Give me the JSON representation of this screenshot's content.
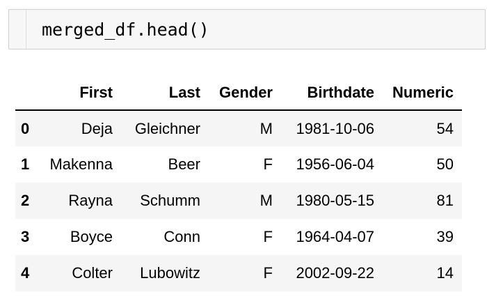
{
  "cell": {
    "code": "merged_df.head()"
  },
  "table": {
    "columns": [
      "",
      "First",
      "Last",
      "Gender",
      "Birthdate",
      "Numeric"
    ],
    "rows": [
      {
        "index": "0",
        "first": "Deja",
        "last": "Gleichner",
        "gender": "M",
        "birthdate": "1981-10-06",
        "numeric": "54"
      },
      {
        "index": "1",
        "first": "Makenna",
        "last": "Beer",
        "gender": "F",
        "birthdate": "1956-06-04",
        "numeric": "50"
      },
      {
        "index": "2",
        "first": "Rayna",
        "last": "Schumm",
        "gender": "M",
        "birthdate": "1980-05-15",
        "numeric": "81"
      },
      {
        "index": "3",
        "first": "Boyce",
        "last": "Conn",
        "gender": "F",
        "birthdate": "1964-04-07",
        "numeric": "39"
      },
      {
        "index": "4",
        "first": "Colter",
        "last": "Lubowitz",
        "gender": "F",
        "birthdate": "2002-09-22",
        "numeric": "14"
      }
    ]
  },
  "colors": {
    "cell_background": "#f7f7f7",
    "cell_border": "#cfcfcf",
    "striped_row": "#f5f5f5",
    "header_rule": "#000000"
  }
}
